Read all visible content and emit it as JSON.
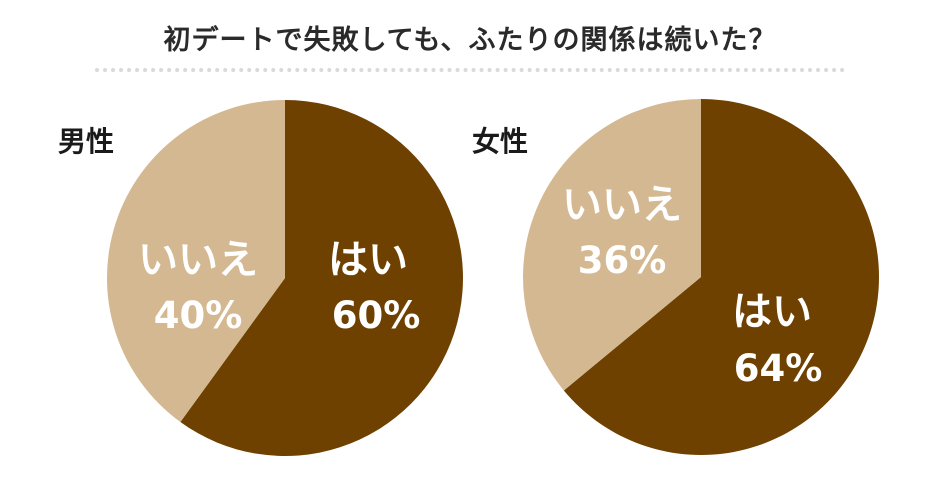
{
  "title": "初デートで失敗しても、ふたりの関係は続いた？",
  "colors": {
    "yes": "#6f4100",
    "no": "#d4b891"
  },
  "chart_data": [
    {
      "type": "pie",
      "label": "男性",
      "slices": [
        {
          "label": "はい",
          "value": 60,
          "value_label": "60%"
        },
        {
          "label": "いいえ",
          "value": 40,
          "value_label": "40%"
        }
      ]
    },
    {
      "type": "pie",
      "label": "女性",
      "slices": [
        {
          "label": "はい",
          "value": 64,
          "value_label": "64%"
        },
        {
          "label": "いいえ",
          "value": 36,
          "value_label": "36%"
        }
      ]
    }
  ]
}
